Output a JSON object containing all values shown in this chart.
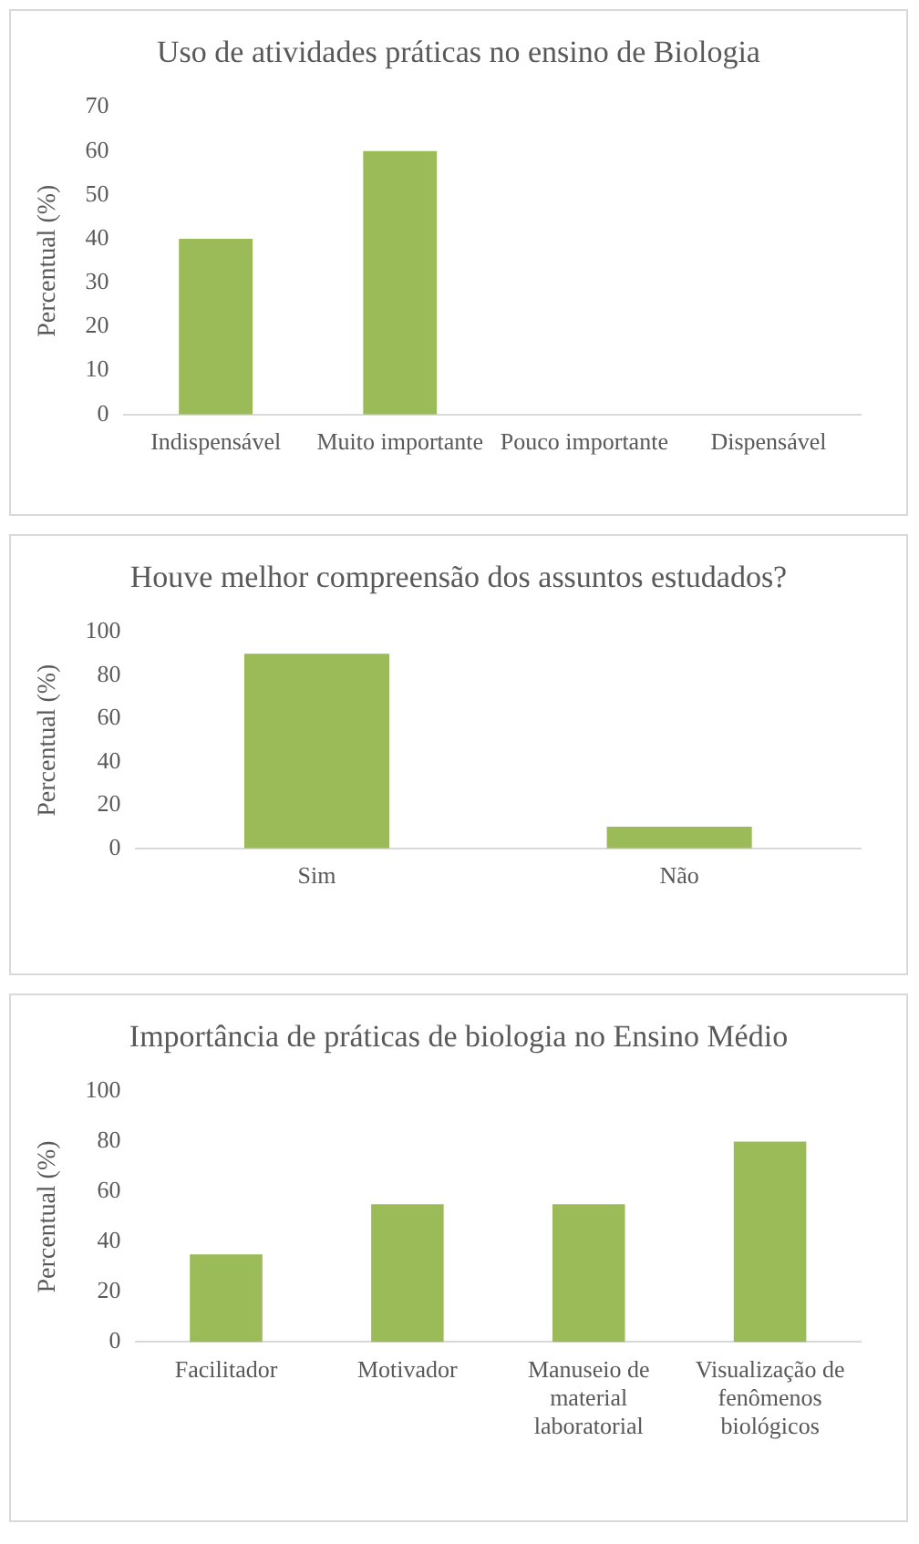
{
  "chart_data": [
    {
      "type": "bar",
      "title": "Uso de atividades práticas no ensino de Biologia",
      "ylabel": "Percentual (%)",
      "categories": [
        "Indispensável",
        "Muito importante",
        "Pouco importante",
        "Dispensável"
      ],
      "values": [
        40,
        60,
        0,
        0
      ],
      "color": "#9bbb59",
      "ylim": [
        0,
        70
      ],
      "yticks": [
        0,
        10,
        20,
        30,
        40,
        50,
        60,
        70
      ],
      "grid": false,
      "legend": false
    },
    {
      "type": "bar",
      "title": "Houve melhor compreensão dos assuntos estudados?",
      "ylabel": "Percentual (%)",
      "categories": [
        "Sim",
        "Não"
      ],
      "values": [
        90,
        10
      ],
      "color": "#9bbb59",
      "ylim": [
        0,
        100
      ],
      "yticks": [
        0,
        20,
        40,
        60,
        80,
        100
      ],
      "grid": false,
      "legend": false
    },
    {
      "type": "bar",
      "title": "Importância de práticas de biologia no Ensino Médio",
      "ylabel": "Percentual (%)",
      "categories": [
        "Facilitador",
        "Motivador",
        "Manuseio de material laboratorial",
        "Visualização de fenômenos biológicos"
      ],
      "values": [
        35,
        55,
        55,
        80
      ],
      "color": "#9bbb59",
      "ylim": [
        0,
        100
      ],
      "yticks": [
        0,
        20,
        40,
        60,
        80,
        100
      ],
      "grid": false,
      "legend": false
    }
  ]
}
